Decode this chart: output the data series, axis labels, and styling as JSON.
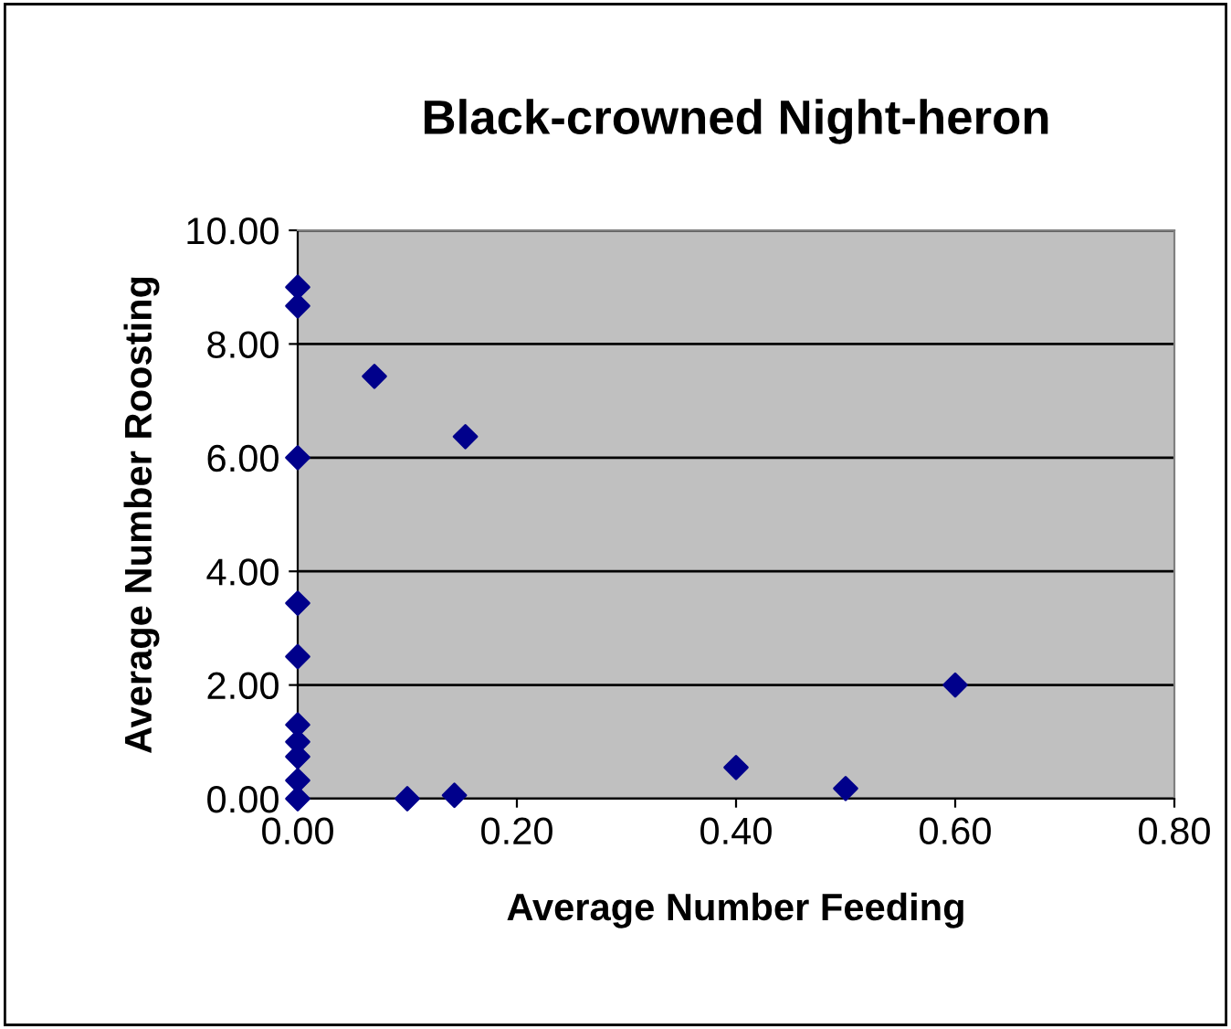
{
  "chart_data": {
    "type": "scatter",
    "title": "Black-crowned Night-heron",
    "xlabel": "Average Number Feeding",
    "ylabel": "Average Number Roosting",
    "series": [
      {
        "color": "#00008b",
        "x": [
          0,
          0,
          0,
          0,
          0,
          0,
          0,
          0,
          0,
          0,
          0.07,
          0.153,
          0.1,
          0.143,
          0.4,
          0.5,
          0.6
        ],
        "values": [
          9.0,
          8.67,
          6.0,
          3.44,
          2.5,
          1.3,
          1.0,
          0.74,
          0.32,
          0,
          7.43,
          6.37,
          0,
          0.06,
          0.55,
          0.18,
          2.0
        ]
      }
    ],
    "xlim": [
      0,
      0.8
    ],
    "ylim": [
      0,
      10
    ],
    "xticks": [
      {
        "value": 0,
        "label": "0.00"
      },
      {
        "value": 0.2,
        "label": "0.20"
      },
      {
        "value": 0.4,
        "label": "0.40"
      },
      {
        "value": 0.6,
        "label": "0.60"
      },
      {
        "value": 0.8,
        "label": "0.80"
      }
    ],
    "yticks": [
      {
        "value": 0,
        "label": "0.00"
      },
      {
        "value": 2,
        "label": "2.00"
      },
      {
        "value": 4,
        "label": "4.00"
      },
      {
        "value": 6,
        "label": "6.00"
      },
      {
        "value": 8,
        "label": "8.00"
      },
      {
        "value": 10,
        "label": "10.00"
      }
    ],
    "grid": "y",
    "marker": "diamond"
  }
}
